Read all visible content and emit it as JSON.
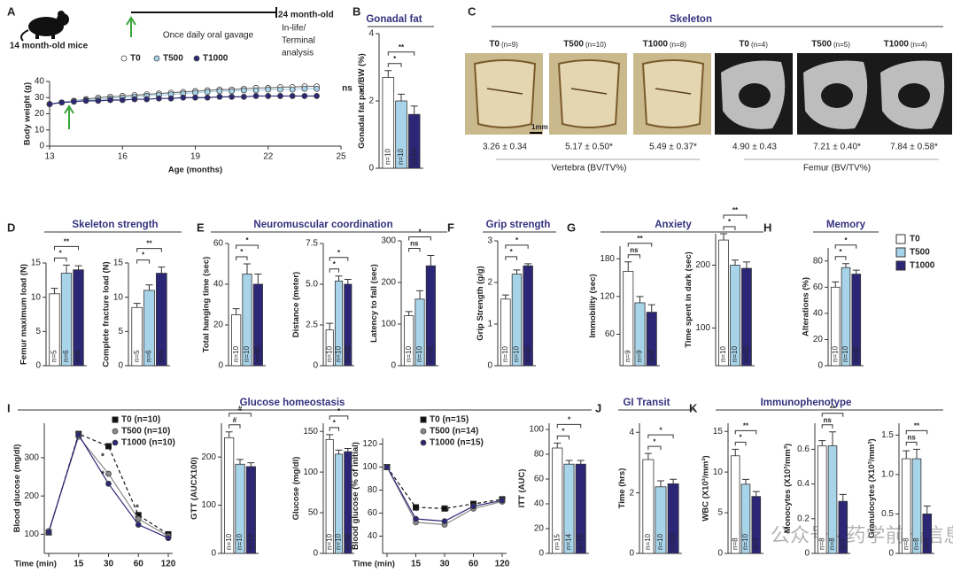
{
  "panels": [
    {
      "letter": "A"
    },
    {
      "letter": "B",
      "title": "Gonadal fat"
    },
    {
      "letter": "C",
      "title": "Skeleton"
    },
    {
      "letter": "D",
      "title": "Skeleton strength"
    },
    {
      "letter": "E",
      "title": "Neuromuscular coordination"
    },
    {
      "letter": "F",
      "title": "Grip strength"
    },
    {
      "letter": "G",
      "title": "Anxiety"
    },
    {
      "letter": "H",
      "title": "Memory"
    },
    {
      "letter": "I",
      "title": "Glucose homeostasis"
    },
    {
      "letter": "J",
      "title": "GI Transit"
    },
    {
      "letter": "K",
      "title": "Immunophenotype"
    }
  ],
  "header": {
    "mouse_label": "14 month-old mice",
    "gavage": "Once daily oral gavage",
    "endpoint": [
      "24 month-old",
      "In-life/",
      "Terminal",
      "analysis"
    ]
  },
  "groups": [
    {
      "name": "T0",
      "color": "#ffffff"
    },
    {
      "name": "T500",
      "color": "#a8d4ea"
    },
    {
      "name": "T1000",
      "color": "#2b2676"
    }
  ],
  "skeleton": {
    "columns": [
      {
        "group": "T0",
        "n": "(n=9)",
        "value": "3.26 ± 0.34",
        "color": "#222222"
      },
      {
        "group": "T500",
        "n": "(n=10)",
        "value": "5.17 ± 0.50*",
        "color": "#c8322c"
      },
      {
        "group": "T1000",
        "n": "(n=8)",
        "value": "5.49 ± 0.37*",
        "color": "#c8322c"
      },
      {
        "group": "T0",
        "n": "(n=4)",
        "value": "4.90 ± 0.43",
        "color": "#222222"
      },
      {
        "group": "T500",
        "n": "(n=5)",
        "value": "7.21 ± 0.40*",
        "color": "#c8322c"
      },
      {
        "group": "T1000",
        "n": "(n=4)",
        "value": "7.84 ± 0.58*",
        "color": "#c8322c"
      }
    ],
    "scale_bar": "1mm",
    "vertebra": "Vertebra (BV/TV%)",
    "femur": "Femur (BV/TV%)"
  },
  "watermark": "公众号 · 药学前沿信息",
  "chart_data": [
    {
      "type": "line",
      "ylabel": "Body weight (g)",
      "xlabel": "Age (months)",
      "x": [
        13,
        13.5,
        14,
        14.5,
        15,
        15.5,
        16,
        16.5,
        17,
        17.5,
        18,
        18.5,
        19,
        19.5,
        20,
        20.5,
        21,
        21.5,
        22,
        22.5,
        23,
        23.5,
        24
      ],
      "xlim": [
        13,
        25
      ],
      "xticks": [
        13,
        16,
        19,
        22,
        25
      ],
      "ylim": [
        0,
        40
      ],
      "yticks": [
        0,
        10,
        20,
        30,
        40
      ],
      "series": [
        {
          "name": "T0",
          "color": "#ffffff",
          "marker": "circle",
          "values": [
            26,
            27,
            28,
            29,
            30,
            30.5,
            31,
            31.5,
            32,
            32.5,
            33,
            33.5,
            34,
            34.5,
            35,
            35,
            35.5,
            36,
            36,
            36.5,
            36.5,
            37,
            37
          ]
        },
        {
          "name": "T500",
          "color": "#a8d4ea",
          "marker": "circle",
          "values": [
            26,
            27,
            28,
            28.5,
            29,
            29.5,
            30,
            30.5,
            31,
            31.5,
            32,
            32.5,
            33,
            33.5,
            34,
            34,
            34.5,
            34.5,
            35,
            35,
            35,
            35.5,
            35.5
          ]
        },
        {
          "name": "T1000",
          "color": "#2b2676",
          "marker": "circle",
          "values": [
            26,
            27,
            27.5,
            28,
            28,
            28.5,
            28.5,
            29,
            29,
            29.5,
            29.5,
            30,
            30,
            30,
            30.5,
            30.5,
            30.5,
            31,
            31,
            31,
            31,
            31,
            31
          ]
        }
      ],
      "annotations": [
        "ns",
        "*"
      ]
    },
    {
      "type": "bar",
      "ylabel": "Gonadal fat pad/BW (%)",
      "ylim": [
        0,
        4
      ],
      "yticks": [
        0,
        2,
        4
      ],
      "values": [
        2.7,
        2.0,
        1.6
      ],
      "errors": [
        0.2,
        0.2,
        0.25
      ],
      "n_labels": [
        "n=10",
        "n=10",
        "n=10"
      ],
      "brackets": [
        {
          "pair": [
            "T0",
            "T500"
          ],
          "label": "*"
        },
        {
          "pair": [
            "T0",
            "T1000"
          ],
          "label": "**"
        }
      ]
    },
    {
      "type": "bar",
      "ylabel": "Femur maximum load (N)",
      "ylim": [
        0,
        15
      ],
      "yticks": [
        0,
        5,
        10,
        15
      ],
      "values": [
        10.5,
        13.5,
        14
      ],
      "errors": [
        0.8,
        1.2,
        0.6
      ],
      "n_labels": [
        "n=5",
        "n=6",
        "n=6"
      ],
      "brackets": [
        {
          "pair": [
            "T0",
            "T500"
          ],
          "label": "*"
        },
        {
          "pair": [
            "T0",
            "T1000"
          ],
          "label": "**"
        }
      ]
    },
    {
      "type": "bar",
      "ylabel": "Complete fracture load (N)",
      "ylim": [
        0,
        15
      ],
      "yticks": [
        0,
        5,
        10,
        15
      ],
      "values": [
        8.5,
        11,
        13.5
      ],
      "errors": [
        0.6,
        0.8,
        0.9
      ],
      "n_labels": [
        "n=5",
        "n=6",
        "n=6"
      ],
      "brackets": [
        {
          "pair": [
            "T0",
            "T500"
          ],
          "label": "*"
        },
        {
          "pair": [
            "T0",
            "T1000"
          ],
          "label": "**"
        }
      ]
    },
    {
      "type": "bar",
      "ylabel": "Total hanging time (sec)",
      "ylim": [
        0,
        60
      ],
      "yticks": [
        0,
        20,
        40,
        60
      ],
      "values": [
        25,
        45,
        40
      ],
      "errors": [
        3,
        5,
        5
      ],
      "n_labels": [
        "n=10",
        "n=10",
        "n=10"
      ],
      "brackets": [
        {
          "pair": [
            "T0",
            "T500"
          ],
          "label": "*"
        },
        {
          "pair": [
            "T0",
            "T1000"
          ],
          "label": "*"
        }
      ]
    },
    {
      "type": "bar",
      "ylabel": "Distance (meter)",
      "ylim": [
        0,
        7.5
      ],
      "yticks": [
        0,
        2.5,
        {
          "value": 5,
          "label": "5.0"
        },
        7.5
      ],
      "values": [
        2.2,
        5.2,
        5.0
      ],
      "errors": [
        0.4,
        0.3,
        0.3
      ],
      "n_labels": [
        "n=10",
        "n=10",
        "n=10"
      ],
      "brackets": [
        {
          "pair": [
            "T0",
            "T500"
          ],
          "label": "*"
        },
        {
          "pair": [
            "T0",
            "T1000"
          ],
          "label": "*"
        }
      ]
    },
    {
      "type": "bar",
      "ylabel": "Latency to fall (sec)",
      "ylim": [
        0,
        300
      ],
      "yticks": [
        0,
        100,
        200,
        300
      ],
      "values": [
        120,
        160,
        240
      ],
      "errors": [
        10,
        20,
        25
      ],
      "n_labels": [
        "n=10",
        "n=10",
        "n=10"
      ],
      "brackets": [
        {
          "pair": [
            "T0",
            "T500"
          ],
          "label": "ns"
        },
        {
          "pair": [
            "T0",
            "T1000"
          ],
          "label": "*"
        }
      ]
    },
    {
      "type": "bar",
      "ylabel": "Grip Strength (g/g)",
      "ylim": [
        0,
        3
      ],
      "yticks": [
        0,
        1,
        2,
        3
      ],
      "values": [
        1.6,
        2.2,
        2.4
      ],
      "errors": [
        0.1,
        0.1,
        0.05
      ],
      "n_labels": [
        "n=10",
        "n=10",
        "n=10"
      ],
      "brackets": [
        {
          "pair": [
            "T0",
            "T500"
          ],
          "label": "*"
        },
        {
          "pair": [
            "T0",
            "T1000"
          ],
          "label": "*"
        }
      ]
    },
    {
      "type": "bar",
      "ylabel": "Immobility (sec)",
      "ylim": [
        10,
        200
      ],
      "yticks": [
        60,
        120,
        180
      ],
      "values": [
        160,
        110,
        95
      ],
      "errors": [
        15,
        10,
        12
      ],
      "n_labels": [
        "n=9",
        "n=9",
        "n=9"
      ],
      "brackets": [
        {
          "pair": [
            "T0",
            "T500"
          ],
          "label": "ns"
        },
        {
          "pair": [
            "T0",
            "T1000"
          ],
          "label": "**"
        }
      ]
    },
    {
      "type": "bar",
      "ylabel": "Time spent in dark (sec)",
      "ylim": [
        40,
        250
      ],
      "yticks": [
        100,
        200
      ],
      "values": [
        240,
        200,
        195
      ],
      "errors": [
        10,
        8,
        10
      ],
      "n_labels": [
        "n=10",
        "n=10",
        "n=10"
      ],
      "brackets": [
        {
          "pair": [
            "T0",
            "T500"
          ],
          "label": "*"
        },
        {
          "pair": [
            "T0",
            "T1000"
          ],
          "label": "**"
        }
      ]
    },
    {
      "type": "bar",
      "ylabel": "Alterations (%)",
      "ylim": [
        0,
        90
      ],
      "yticks": [
        0,
        20,
        40,
        60,
        80
      ],
      "values": [
        60,
        75,
        70
      ],
      "errors": [
        4,
        3,
        3
      ],
      "n_labels": [
        "n=10",
        "n=10",
        "n=10"
      ],
      "brackets": [
        {
          "pair": [
            "T0",
            "T500"
          ],
          "label": "*"
        },
        {
          "pair": [
            "T0",
            "T1000"
          ],
          "label": "*"
        }
      ]
    },
    {
      "type": "line",
      "ylabel": "Blood glucose (mg/dl)",
      "xlabel": "Time (min)",
      "categories": [
        null,
        "15",
        "30",
        "60",
        "120"
      ],
      "ylim": [
        50,
        390
      ],
      "yticks": [
        100,
        200,
        300
      ],
      "series": [
        {
          "name": "T0 (n=10)",
          "color": "#111111",
          "marker": "square",
          "dashed": true,
          "values": [
            105,
            362,
            330,
            150,
            100
          ]
        },
        {
          "name": "T500 (n=10)",
          "color": "#8a8a8a",
          "marker": "circle",
          "values": [
            108,
            355,
            258,
            140,
            95
          ]
        },
        {
          "name": "T1000 (n=10)",
          "color": "#2b2676",
          "marker": "circle",
          "values": [
            105,
            360,
            232,
            125,
            90
          ]
        }
      ],
      "annotations": [
        "*",
        "*",
        "*"
      ]
    },
    {
      "type": "bar",
      "ylabel": "GTT (AUCX100)",
      "ylim": [
        0,
        270
      ],
      "yticks": [
        0,
        100,
        200
      ],
      "values": [
        240,
        185,
        180
      ],
      "errors": [
        12,
        10,
        8
      ],
      "n_labels": [
        "n=10",
        "n=10",
        "n=10"
      ],
      "brackets": [
        {
          "pair": [
            "T0",
            "T500"
          ],
          "label": "#"
        },
        {
          "pair": [
            "T0",
            "T1000"
          ],
          "label": "#"
        }
      ]
    },
    {
      "type": "bar",
      "ylabel": "Glucose (mg/dl)",
      "ylim": [
        0,
        160
      ],
      "yticks": [
        0,
        50,
        100,
        150
      ],
      "values": [
        140,
        122,
        125
      ],
      "errors": [
        6,
        5,
        4
      ],
      "n_labels": [
        "n=10",
        "n=10",
        "n=10"
      ],
      "brackets": [
        {
          "pair": [
            "T0",
            "T500"
          ],
          "label": "*"
        },
        {
          "pair": [
            "T0",
            "T1000"
          ],
          "label": "*"
        }
      ]
    },
    {
      "type": "line",
      "ylabel": "Blood glucose (% of initial)",
      "xlabel": "Time (min)",
      "categories": [
        null,
        "15",
        "30",
        "60",
        "120"
      ],
      "ylim": [
        25,
        125
      ],
      "yticks": [
        40,
        60,
        80,
        100,
        120
      ],
      "series": [
        {
          "name": "T0 (n=15)",
          "color": "#111111",
          "marker": "square",
          "dashed": true,
          "values": [
            100,
            65,
            64,
            68,
            72
          ]
        },
        {
          "name": "T500 (n=14)",
          "color": "#8a8a8a",
          "marker": "circle",
          "values": [
            100,
            52,
            50,
            64,
            70
          ]
        },
        {
          "name": "T1000 (n=15)",
          "color": "#2b2676",
          "marker": "circle",
          "values": [
            100,
            55,
            53,
            66,
            71
          ]
        }
      ],
      "annotations": [
        "*",
        "*"
      ]
    },
    {
      "type": "bar",
      "ylabel": "ITT (AUC)",
      "ylim": [
        0,
        105
      ],
      "yticks": [
        0,
        20,
        40,
        60,
        80,
        100
      ],
      "values": [
        85,
        72,
        72
      ],
      "errors": [
        4,
        3,
        3
      ],
      "n_labels": [
        "n=15",
        "n=14",
        "n=15"
      ],
      "brackets": [
        {
          "pair": [
            "T0",
            "T500"
          ],
          "label": "*"
        },
        {
          "pair": [
            "T0",
            "T1000"
          ],
          "label": "*"
        }
      ]
    },
    {
      "type": "bar",
      "ylabel": "Time (hrs)",
      "ylim": [
        0,
        4.3
      ],
      "yticks": [
        0,
        2,
        4
      ],
      "values": [
        3.1,
        2.2,
        2.3
      ],
      "errors": [
        0.2,
        0.2,
        0.15
      ],
      "n_labels": [
        "n=10",
        "n=10",
        "n=10"
      ],
      "brackets": [
        {
          "pair": [
            "T0",
            "T500"
          ],
          "label": "*"
        },
        {
          "pair": [
            "T0",
            "T1000"
          ],
          "label": "*"
        }
      ]
    },
    {
      "type": "bar",
      "ylabel": "WBC (X10³/mm³)",
      "ylim": [
        0,
        16
      ],
      "yticks": [
        0,
        5,
        10,
        15
      ],
      "values": [
        12,
        8.5,
        7
      ],
      "errors": [
        0.8,
        0.6,
        0.6
      ],
      "n_labels": [
        "n=8",
        "n=10",
        "n=7"
      ],
      "brackets": [
        {
          "pair": [
            "T0",
            "T500"
          ],
          "label": "*"
        },
        {
          "pair": [
            "T0",
            "T1000"
          ],
          "label": "**"
        }
      ]
    },
    {
      "type": "bar",
      "ylabel": "Monocytes (X10³/mm³)",
      "ylim": [
        0,
        0.75
      ],
      "yticks": [
        0,
        0.2,
        0.4,
        0.6
      ],
      "values": [
        0.62,
        0.62,
        0.3
      ],
      "errors": [
        0.03,
        0.08,
        0.04
      ],
      "n_labels": [
        "n=8",
        "n=8",
        "n=7"
      ],
      "brackets": [
        {
          "pair": [
            "T0",
            "T500"
          ],
          "label": "ns"
        },
        {
          "pair": [
            "T0",
            "T1000"
          ],
          "label": "**"
        }
      ]
    },
    {
      "type": "bar",
      "ylabel": "Granulocytes (X10³/mm³)",
      "ylim": [
        0,
        1.65
      ],
      "yticks": [
        0,
        0.5,
        {
          "value": 1,
          "label": "1.0"
        },
        1.5
      ],
      "values": [
        1.2,
        1.2,
        0.5
      ],
      "errors": [
        0.1,
        0.12,
        0.1
      ],
      "n_labels": [
        "n=8",
        "n=8",
        "n=7"
      ],
      "brackets": [
        {
          "pair": [
            "T0",
            "T500"
          ],
          "label": "ns"
        },
        {
          "pair": [
            "T0",
            "T1000"
          ],
          "label": "**"
        }
      ]
    }
  ]
}
